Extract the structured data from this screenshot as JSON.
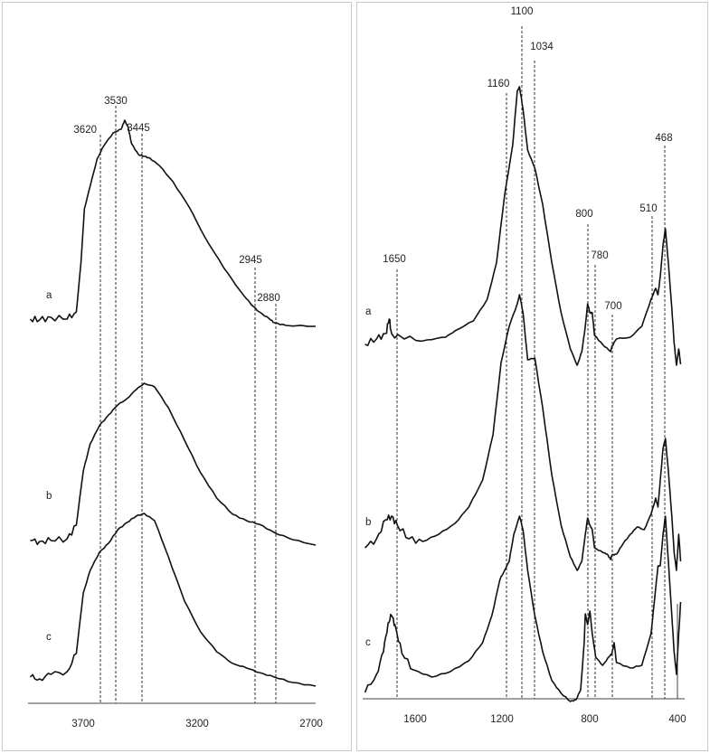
{
  "chart_data": [
    {
      "type": "line",
      "xlim": [
        3950,
        2700
      ],
      "x_reversed": true,
      "x_ticks": [
        "3700",
        "3200",
        "2700"
      ],
      "peak_markers": [
        "3620",
        "3530",
        "3445",
        "2945",
        "2880"
      ],
      "grid": false,
      "legend": "none",
      "series": [
        {
          "name": "a",
          "points": [
            [
              3940,
              352
            ],
            [
              3900,
              353
            ],
            [
              3850,
              350
            ],
            [
              3780,
              352
            ],
            [
              3740,
              344
            ],
            [
              3720,
              290
            ],
            [
              3705,
              230
            ],
            [
              3680,
              205
            ],
            [
              3650,
              175
            ],
            [
              3620,
              160
            ],
            [
              3580,
              146
            ],
            [
              3545,
              142
            ],
            [
              3530,
              132
            ],
            [
              3515,
              140
            ],
            [
              3500,
              158
            ],
            [
              3470,
              170
            ],
            [
              3445,
              172
            ],
            [
              3420,
              174
            ],
            [
              3380,
              182
            ],
            [
              3320,
              200
            ],
            [
              3250,
              228
            ],
            [
              3180,
              262
            ],
            [
              3100,
              295
            ],
            [
              3030,
              320
            ],
            [
              2980,
              336
            ],
            [
              2945,
              344
            ],
            [
              2900,
              352
            ],
            [
              2880,
              356
            ],
            [
              2830,
              359
            ],
            [
              2700,
              360
            ]
          ]
        },
        {
          "name": "b",
          "points": [
            [
              3940,
              597
            ],
            [
              3900,
              598
            ],
            [
              3850,
              597
            ],
            [
              3780,
              595
            ],
            [
              3740,
              580
            ],
            [
              3710,
              520
            ],
            [
              3680,
              490
            ],
            [
              3640,
              470
            ],
            [
              3600,
              458
            ],
            [
              3560,
              447
            ],
            [
              3520,
              440
            ],
            [
              3480,
              430
            ],
            [
              3445,
              423
            ],
            [
              3400,
              427
            ],
            [
              3340,
              450
            ],
            [
              3270,
              486
            ],
            [
              3200,
              522
            ],
            [
              3130,
              550
            ],
            [
              3060,
              568
            ],
            [
              3000,
              575
            ],
            [
              2945,
              579
            ],
            [
              2880,
              588
            ],
            [
              2800,
              596
            ],
            [
              2700,
              602
            ]
          ]
        },
        {
          "name": "c",
          "points": [
            [
              3940,
              748
            ],
            [
              3900,
              750
            ],
            [
              3850,
              745
            ],
            [
              3780,
              742
            ],
            [
              3740,
              722
            ],
            [
              3710,
              655
            ],
            [
              3680,
              630
            ],
            [
              3640,
              610
            ],
            [
              3600,
              600
            ],
            [
              3560,
              585
            ],
            [
              3520,
              577
            ],
            [
              3480,
              570
            ],
            [
              3445,
              567
            ],
            [
              3400,
              575
            ],
            [
              3340,
              615
            ],
            [
              3270,
              664
            ],
            [
              3200,
              698
            ],
            [
              3130,
              720
            ],
            [
              3060,
              733
            ],
            [
              3000,
              738
            ],
            [
              2945,
              743
            ],
            [
              2880,
              748
            ],
            [
              2800,
              754
            ],
            [
              2700,
              758
            ]
          ]
        }
      ]
    },
    {
      "type": "line",
      "xlim": [
        1780,
        400
      ],
      "x_reversed": true,
      "x_ticks": [
        "1600",
        "1200",
        "800",
        "400"
      ],
      "peak_markers": [
        "1650",
        "1160",
        "1100",
        "1034",
        "800",
        "780",
        "700",
        "510",
        "468"
      ],
      "grid": false,
      "legend": "none",
      "series": [
        {
          "name": "a",
          "points": [
            [
              1770,
              380
            ],
            [
              1720,
              374
            ],
            [
              1680,
              368
            ],
            [
              1665,
              352
            ],
            [
              1655,
              368
            ],
            [
              1600,
              374
            ],
            [
              1500,
              375
            ],
            [
              1420,
              372
            ],
            [
              1380,
              365
            ],
            [
              1300,
              354
            ],
            [
              1240,
              330
            ],
            [
              1200,
              290
            ],
            [
              1165,
              215
            ],
            [
              1130,
              160
            ],
            [
              1110,
              100
            ],
            [
              1100,
              95
            ],
            [
              1085,
              120
            ],
            [
              1065,
              165
            ],
            [
              1034,
              185
            ],
            [
              1000,
              225
            ],
            [
              960,
              290
            ],
            [
              920,
              345
            ],
            [
              880,
              385
            ],
            [
              850,
              403
            ],
            [
              830,
              388
            ],
            [
              815,
              360
            ],
            [
              805,
              335
            ],
            [
              795,
              345
            ],
            [
              785,
              345
            ],
            [
              775,
              370
            ],
            [
              740,
              380
            ],
            [
              705,
              388
            ],
            [
              700,
              382
            ],
            [
              680,
              374
            ],
            [
              620,
              372
            ],
            [
              570,
              360
            ],
            [
              530,
              330
            ],
            [
              510,
              318
            ],
            [
              500,
              325
            ],
            [
              490,
              305
            ],
            [
              478,
              270
            ],
            [
              468,
              252
            ],
            [
              455,
              290
            ],
            [
              440,
              340
            ],
            [
              430,
              378
            ],
            [
              420,
              403
            ],
            [
              410,
              385
            ],
            [
              402,
              402
            ]
          ]
        },
        {
          "name": "b",
          "points": [
            [
              1770,
              605
            ],
            [
              1720,
              595
            ],
            [
              1680,
              574
            ],
            [
              1655,
              570
            ],
            [
              1630,
              580
            ],
            [
              1580,
              595
            ],
            [
              1520,
              598
            ],
            [
              1450,
              590
            ],
            [
              1380,
              578
            ],
            [
              1320,
              560
            ],
            [
              1260,
              530
            ],
            [
              1215,
              480
            ],
            [
              1180,
              400
            ],
            [
              1145,
              360
            ],
            [
              1110,
              335
            ],
            [
              1100,
              325
            ],
            [
              1085,
              345
            ],
            [
              1065,
              397
            ],
            [
              1034,
              395
            ],
            [
              1000,
              450
            ],
            [
              960,
              525
            ],
            [
              920,
              580
            ],
            [
              880,
              615
            ],
            [
              850,
              630
            ],
            [
              830,
              620
            ],
            [
              815,
              590
            ],
            [
              805,
              572
            ],
            [
              795,
              580
            ],
            [
              785,
              585
            ],
            [
              775,
              605
            ],
            [
              740,
              610
            ],
            [
              720,
              612
            ],
            [
              705,
              618
            ],
            [
              700,
              613
            ],
            [
              680,
              612
            ],
            [
              650,
              600
            ],
            [
              620,
              590
            ],
            [
              590,
              582
            ],
            [
              560,
              585
            ],
            [
              530,
              568
            ],
            [
              510,
              550
            ],
            [
              500,
              560
            ],
            [
              490,
              530
            ],
            [
              478,
              495
            ],
            [
              468,
              484
            ],
            [
              455,
              520
            ],
            [
              440,
              570
            ],
            [
              430,
              610
            ],
            [
              420,
              630
            ],
            [
              410,
              590
            ],
            [
              402,
              620
            ]
          ]
        },
        {
          "name": "c",
          "points": [
            [
              1770,
              765
            ],
            [
              1720,
              745
            ],
            [
              1690,
              720
            ],
            [
              1670,
              688
            ],
            [
              1655,
              680
            ],
            [
              1640,
              690
            ],
            [
              1610,
              722
            ],
            [
              1560,
              740
            ],
            [
              1480,
              748
            ],
            [
              1400,
              742
            ],
            [
              1320,
              730
            ],
            [
              1260,
              710
            ],
            [
              1220,
              680
            ],
            [
              1185,
              640
            ],
            [
              1165,
              630
            ],
            [
              1145,
              620
            ],
            [
              1125,
              590
            ],
            [
              1100,
              570
            ],
            [
              1085,
              585
            ],
            [
              1065,
              630
            ],
            [
              1034,
              680
            ],
            [
              1000,
              720
            ],
            [
              960,
              752
            ],
            [
              920,
              766
            ],
            [
              880,
              775
            ],
            [
              855,
              773
            ],
            [
              835,
              762
            ],
            [
              820,
              710
            ],
            [
              815,
              678
            ],
            [
              805,
              690
            ],
            [
              795,
              675
            ],
            [
              785,
              700
            ],
            [
              770,
              726
            ],
            [
              740,
              735
            ],
            [
              710,
              725
            ],
            [
              700,
              722
            ],
            [
              690,
              710
            ],
            [
              680,
              732
            ],
            [
              620,
              738
            ],
            [
              570,
              735
            ],
            [
              530,
              700
            ],
            [
              510,
              650
            ],
            [
              500,
              625
            ],
            [
              490,
              625
            ],
            [
              478,
              590
            ],
            [
              468,
              570
            ],
            [
              455,
              620
            ],
            [
              440,
              680
            ],
            [
              430,
              720
            ],
            [
              420,
              745
            ],
            [
              410,
              700
            ],
            [
              402,
              665
            ]
          ]
        }
      ]
    }
  ]
}
